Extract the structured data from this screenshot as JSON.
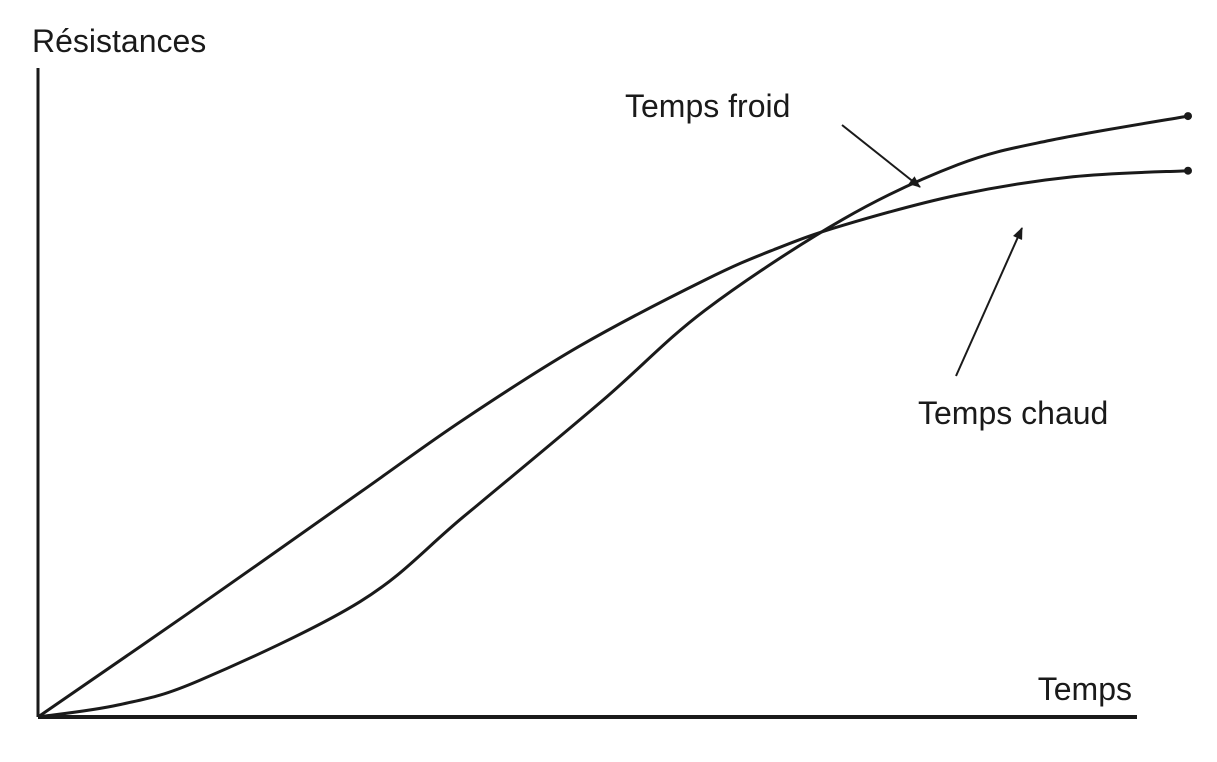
{
  "chart_data": {
    "type": "line",
    "ylabel": "Résistances",
    "xlabel": "Temps",
    "grid": false,
    "xlim": [
      0,
      100
    ],
    "ylim": [
      0,
      100
    ],
    "series": [
      {
        "name": "Temps froid",
        "color": "#1a1a1a",
        "x": [
          0,
          7,
          14,
          28,
          37,
          49,
          58,
          70,
          80,
          88,
          100
        ],
        "y": [
          0,
          2,
          6,
          19,
          33,
          52,
          67,
          82,
          91,
          95,
          99
        ]
      },
      {
        "name": "Temps chaud",
        "color": "#1a1a1a",
        "x": [
          0,
          13,
          28,
          37,
          47,
          58,
          64,
          70,
          80,
          90,
          100
        ],
        "y": [
          0,
          17,
          37,
          49,
          61,
          72,
          77,
          81,
          86,
          89,
          90
        ]
      }
    ],
    "annotations": [
      {
        "text": "Temps froid",
        "series": 0
      },
      {
        "text": "Temps chaud",
        "series": 1
      }
    ]
  }
}
